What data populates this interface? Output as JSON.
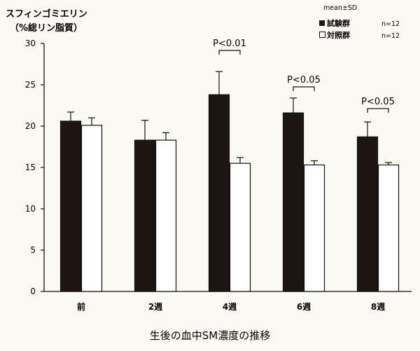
{
  "chart_data": {
    "type": "bar",
    "title": "",
    "ylabel_line1": "スフィンゴミエリン",
    "ylabel_line2": "（%総リン脂質）",
    "xlabel": "",
    "caption": "生後の血中SM濃度の推移",
    "categories": [
      "前",
      "2週",
      "4週",
      "6週",
      "8週"
    ],
    "ylim": [
      0,
      30
    ],
    "yticks": [
      0,
      5,
      10,
      15,
      20,
      25,
      30
    ],
    "series": [
      {
        "name": "試験群",
        "n_label": "n=12",
        "values": [
          20.6,
          18.3,
          23.8,
          21.6,
          18.7
        ],
        "errors": [
          1.1,
          2.4,
          2.8,
          1.8,
          1.8
        ],
        "color": "#1c1512"
      },
      {
        "name": "対照群",
        "n_label": "n=12",
        "values": [
          20.1,
          18.3,
          15.5,
          15.3,
          15.3
        ],
        "errors": [
          0.9,
          0.9,
          0.7,
          0.5,
          0.3
        ],
        "color": "#ffffff"
      }
    ],
    "stat_label": "mean±SD",
    "significance": [
      {
        "category": "4週",
        "label": "P<0.01"
      },
      {
        "category": "6週",
        "label": "P<0.05"
      },
      {
        "category": "8週",
        "label": "P<0.05"
      }
    ],
    "grid": false,
    "legend_position": "top-right"
  }
}
